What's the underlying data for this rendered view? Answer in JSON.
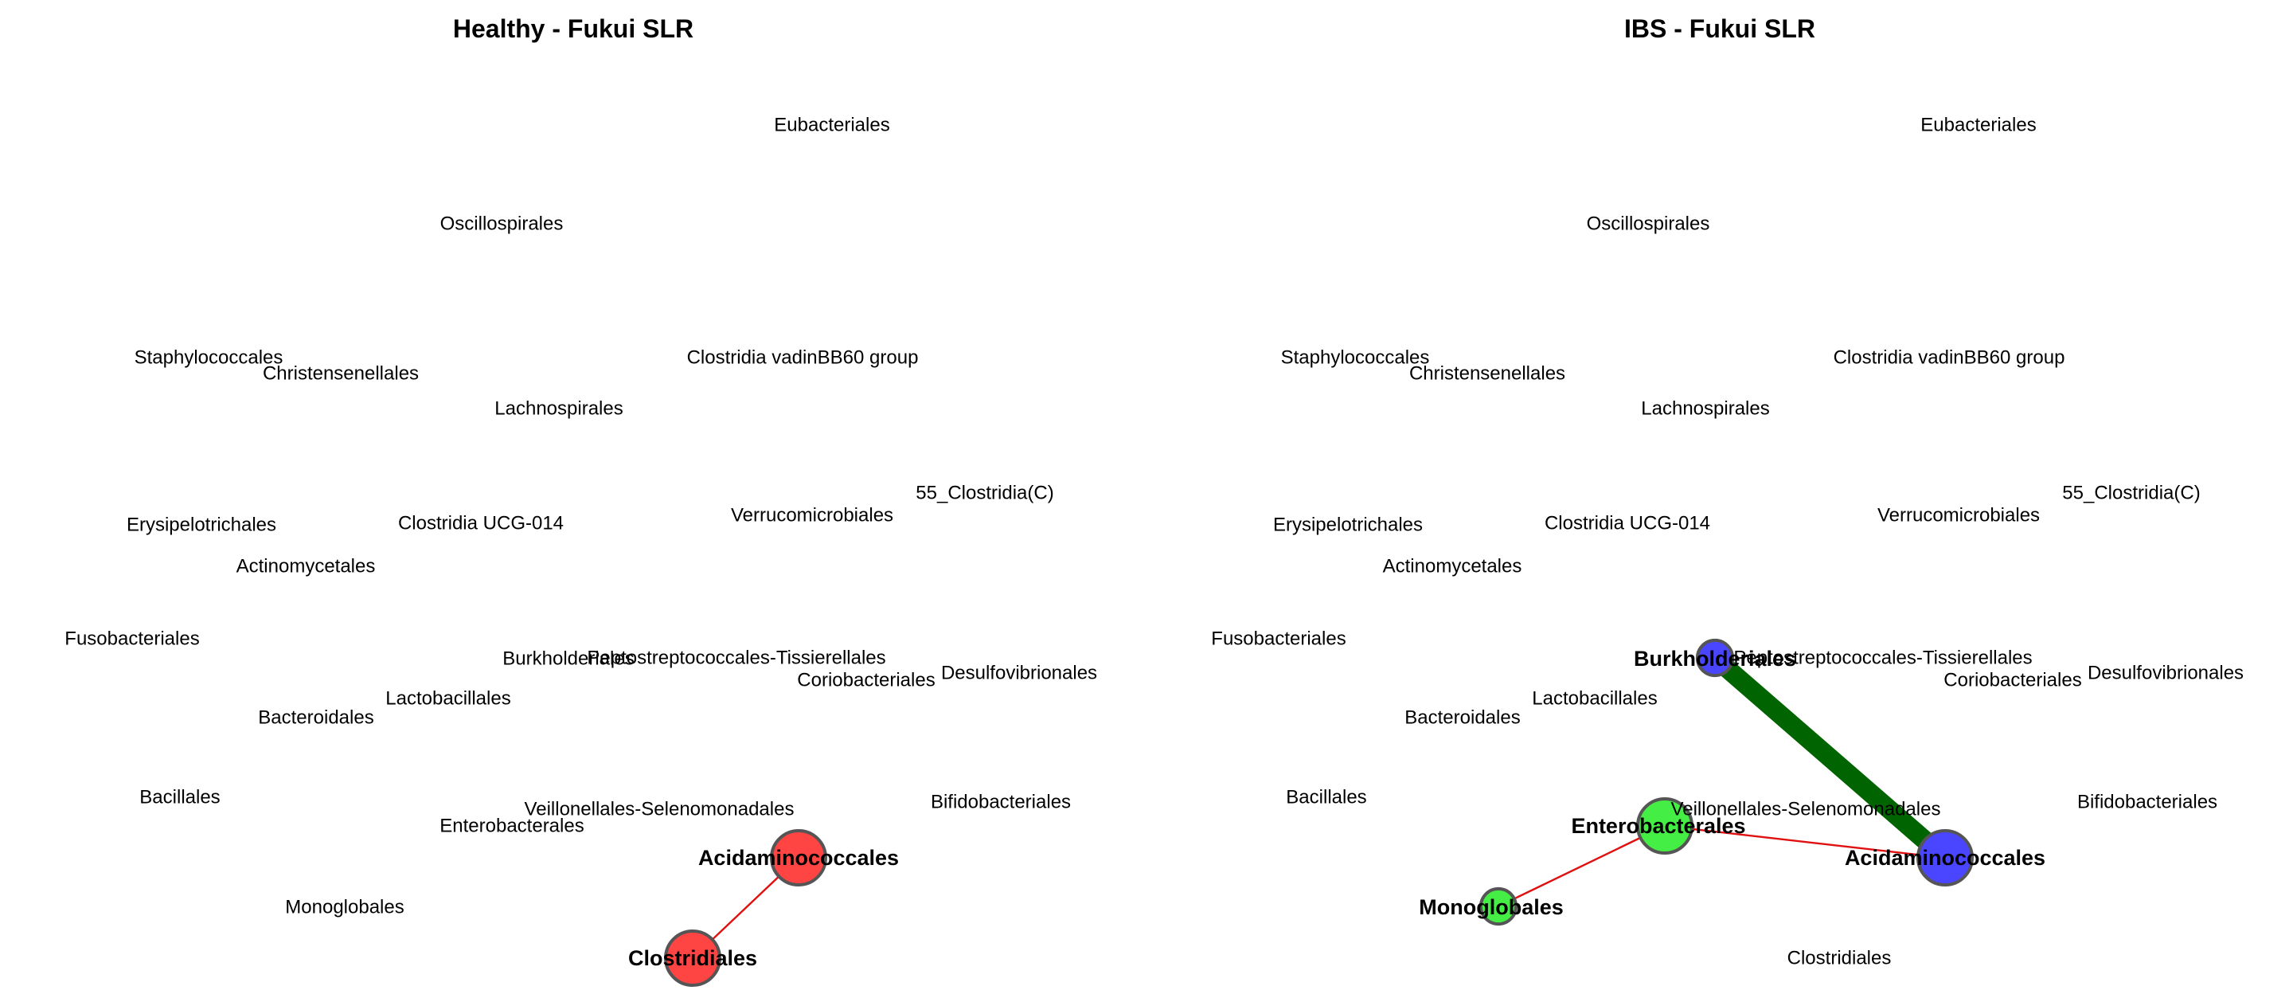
{
  "panels": [
    {
      "title": "Healthy - Fukui SLR",
      "node_colors": {
        "Acidaminococcales": "#ff4444",
        "Clostridiales": "#ff4444"
      },
      "node_sizes": {
        "Acidaminococcales": 1.0,
        "Clostridiales": 1.0
      },
      "edges": [
        {
          "from": "Acidaminococcales",
          "to": "Clostridiales",
          "color": "#e01010",
          "weight": 1
        }
      ]
    },
    {
      "title": "IBS - Fukui SLR",
      "node_colors": {
        "Burkholderiales": "#4a45ff",
        "Acidaminococcales": "#4a45ff",
        "Enterobacterales": "#44ee44",
        "Monoglobales": "#44ee44"
      },
      "node_sizes": {
        "Burkholderiales": 0.65,
        "Acidaminococcales": 1.0,
        "Enterobacterales": 1.0,
        "Monoglobales": 0.65
      },
      "edges": [
        {
          "from": "Burkholderiales",
          "to": "Acidaminococcales",
          "color": "#006400",
          "weight": 10
        },
        {
          "from": "Enterobacterales",
          "to": "Acidaminococcales",
          "color": "#e01010",
          "weight": 1
        },
        {
          "from": "Enterobacterales",
          "to": "Monoglobales",
          "color": "#e01010",
          "weight": 1
        }
      ]
    }
  ],
  "nodes": [
    "Eubacteriales",
    "Oscillospirales",
    "Staphylococcales",
    "Christensenellales",
    "Clostridia vadinBB60 group",
    "Lachnospirales",
    "55_Clostridia(C)",
    "Verrucomicrobiales",
    "Erysipelotrichales",
    "Clostridia UCG-014",
    "Actinomycetales",
    "Fusobacteriales",
    "Burkholderiales",
    "Peptostreptococcales-Tissierellales",
    "Coriobacteriales",
    "Desulfovibrionales",
    "Lactobacillales",
    "Bacteroidales",
    "Bacillales",
    "Veillonellales-Selenomonadales",
    "Bifidobacteriales",
    "Enterobacterales",
    "Acidaminococcales",
    "Monoglobales",
    "Clostridiales"
  ]
}
